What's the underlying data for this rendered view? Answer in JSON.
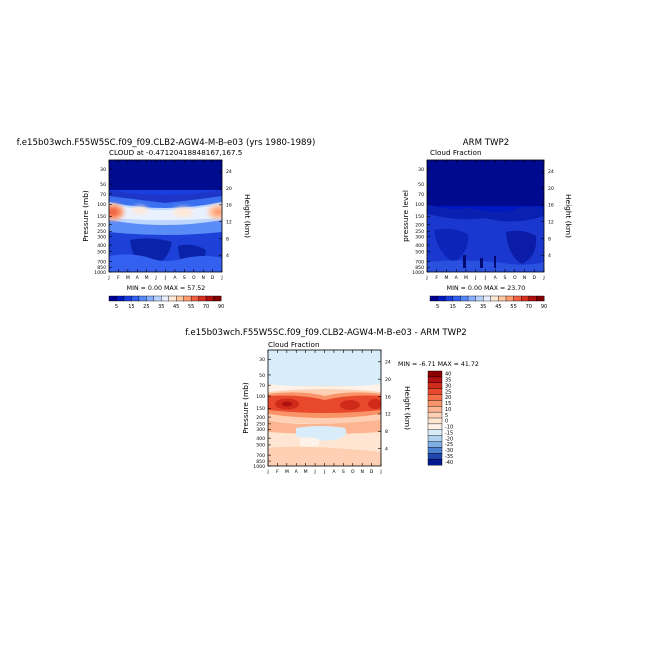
{
  "chart_data": [
    {
      "type": "heatmap",
      "title": "f.e15b03wch.F55W5SC.f09_f09.CLB2-AGW4-M-B-e03 (yrs 1980-1989)",
      "subtitle": "CLOUD at -0.47120418848167,167.5",
      "xlabel": "",
      "ylabel": "Pressure (mb)",
      "y2label": "Height (km)",
      "x_ticks": [
        "J",
        "F",
        "M",
        "A",
        "M",
        "J",
        "J",
        "A",
        "S",
        "O",
        "N",
        "D",
        "J"
      ],
      "y_ticks": [
        "30",
        "50",
        "70",
        "100",
        "150",
        "200",
        "250",
        "300",
        "400",
        "500",
        "700",
        "850",
        "1000"
      ],
      "y2_ticks": [
        "24",
        "20",
        "16",
        "12",
        "8",
        "4"
      ],
      "stats": "MIN =   0.00 MAX =  57.52",
      "colorbar": {
        "orientation": "horizontal",
        "tick_labels": [
          "5",
          "15",
          "25",
          "35",
          "45",
          "55",
          "70",
          "90"
        ],
        "colors": [
          "#000090",
          "#0018c0",
          "#1a3ee0",
          "#3060f0",
          "#5588f8",
          "#88b0ff",
          "#b8d2ff",
          "#e8f0ff",
          "#ffe8d8",
          "#ffc6a2",
          "#ff9a70",
          "#f06040",
          "#d83020",
          "#b01010",
          "#800000"
        ]
      },
      "fields": {
        "max_value": 57.52,
        "peak_pressure_mb": 130,
        "peak_months": [
          "J",
          "D"
        ],
        "cloud_free_top_mb": 30
      }
    },
    {
      "type": "heatmap",
      "title": "ARM TWP2",
      "subtitle": "Cloud Fraction",
      "xlabel": "",
      "ylabel": "pressure level",
      "y2label": "Height (km)",
      "x_ticks": [
        "J",
        "F",
        "M",
        "A",
        "M",
        "J",
        "J",
        "A",
        "S",
        "O",
        "N",
        "D",
        "J"
      ],
      "y_ticks": [
        "30",
        "50",
        "70",
        "100",
        "150",
        "200",
        "250",
        "300",
        "400",
        "500",
        "700",
        "850",
        "1000"
      ],
      "y2_ticks": [
        "24",
        "20",
        "16",
        "12",
        "8",
        "4"
      ],
      "stats": "MIN =   0.00 MAX =  23.70",
      "colorbar": {
        "orientation": "horizontal",
        "tick_labels": [
          "5",
          "15",
          "25",
          "35",
          "45",
          "55",
          "70",
          "90"
        ],
        "colors": [
          "#000090",
          "#0018c0",
          "#1a3ee0",
          "#3060f0",
          "#5588f8",
          "#88b0ff",
          "#b8d2ff",
          "#e8f0ff",
          "#ffe8d8",
          "#ffc6a2",
          "#ff9a70",
          "#f06040",
          "#d83020",
          "#b01010",
          "#800000"
        ]
      },
      "fields": {
        "max_value": 23.7
      }
    },
    {
      "type": "heatmap",
      "title": "f.e15b03wch.F55W5SC.f09_f09.CLB2-AGW4-M-B-e03 - ARM TWP2",
      "subtitle": "Cloud Fraction",
      "xlabel": "",
      "ylabel": "Pressure (mb)",
      "y2label": "Height (km)",
      "x_ticks": [
        "J",
        "F",
        "M",
        "A",
        "M",
        "J",
        "J",
        "A",
        "S",
        "O",
        "N",
        "D",
        "J"
      ],
      "y_ticks": [
        "30",
        "50",
        "70",
        "100",
        "150",
        "200",
        "250",
        "300",
        "400",
        "500",
        "700",
        "850",
        "1000"
      ],
      "y2_ticks": [
        "24",
        "20",
        "16",
        "12",
        "8",
        "4"
      ],
      "stats": "MIN =  -6.71 MAX =  41.72",
      "colorbar": {
        "orientation": "vertical",
        "tick_labels": [
          "40",
          "35",
          "30",
          "25",
          "20",
          "15",
          "10",
          "5",
          "0",
          "-10",
          "-15",
          "-20",
          "-25",
          "-30",
          "-35",
          "-40"
        ],
        "colors": [
          "#8b0000",
          "#b01010",
          "#d02a1a",
          "#e8492c",
          "#f66e48",
          "#fb9368",
          "#fdb490",
          "#fecfb2",
          "#ffe6d2",
          "#fff2e8",
          "#d8ecfa",
          "#aed2f0",
          "#7eaee4",
          "#4c80d0",
          "#2048b0",
          "#001890"
        ]
      },
      "fields": {
        "min_value": -6.71,
        "max_value": 41.72
      }
    }
  ]
}
